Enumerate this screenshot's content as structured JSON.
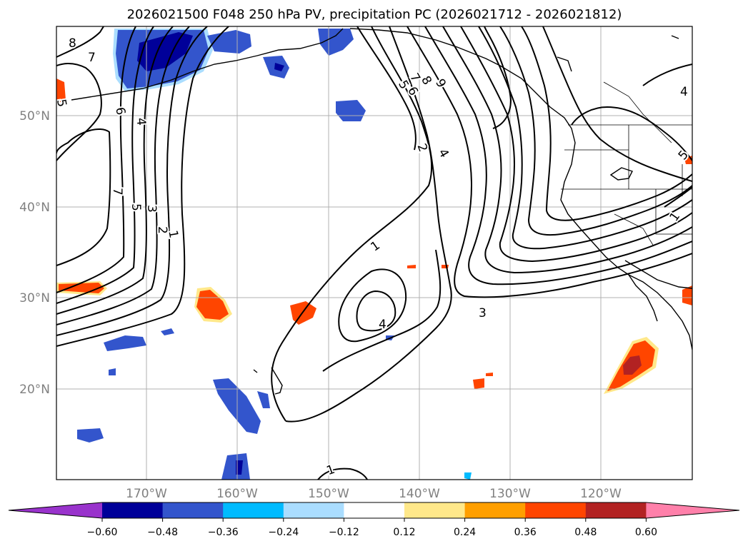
{
  "title": "2026021500 F048 250 hPa PV, precipitation PC (2026021712 - 2026021812)",
  "map": {
    "lon_labels": [
      "170°W",
      "160°W",
      "150°W",
      "140°W",
      "130°W",
      "120°W"
    ],
    "lat_labels": [
      "50°N",
      "40°N",
      "30°N",
      "20°N"
    ],
    "pv_contour_labels": [
      "8",
      "7",
      "6",
      "5",
      "4",
      "7",
      "5",
      "3",
      "2",
      "1",
      "7",
      "8",
      "9",
      "5",
      "6",
      "2",
      "4",
      "1",
      "4",
      "3",
      "1",
      "5",
      "4",
      "1"
    ],
    "precip_colors": {
      "neg_060": "#9933cc",
      "neg_048": "#000099",
      "neg_036": "#3355cc",
      "neg_024": "#00bbff",
      "neg_012": "#aaddff",
      "zero": "#ffffff",
      "pos_012": "#ffe88a",
      "pos_024": "#ff9f00",
      "pos_036": "#ff4500",
      "pos_048": "#b22222",
      "pos_060": "#ff80aa"
    }
  },
  "colorbar": {
    "ticks": [
      "−0.60",
      "−0.48",
      "−0.36",
      "−0.24",
      "−0.12",
      "0.12",
      "0.24",
      "0.36",
      "0.48",
      "0.60"
    ],
    "colors": [
      "#9933cc",
      "#000099",
      "#3355cc",
      "#00bbff",
      "#aaddff",
      "#ffffff",
      "#ffe88a",
      "#ff9f00",
      "#ff4500",
      "#b22222",
      "#ff80aa"
    ]
  }
}
